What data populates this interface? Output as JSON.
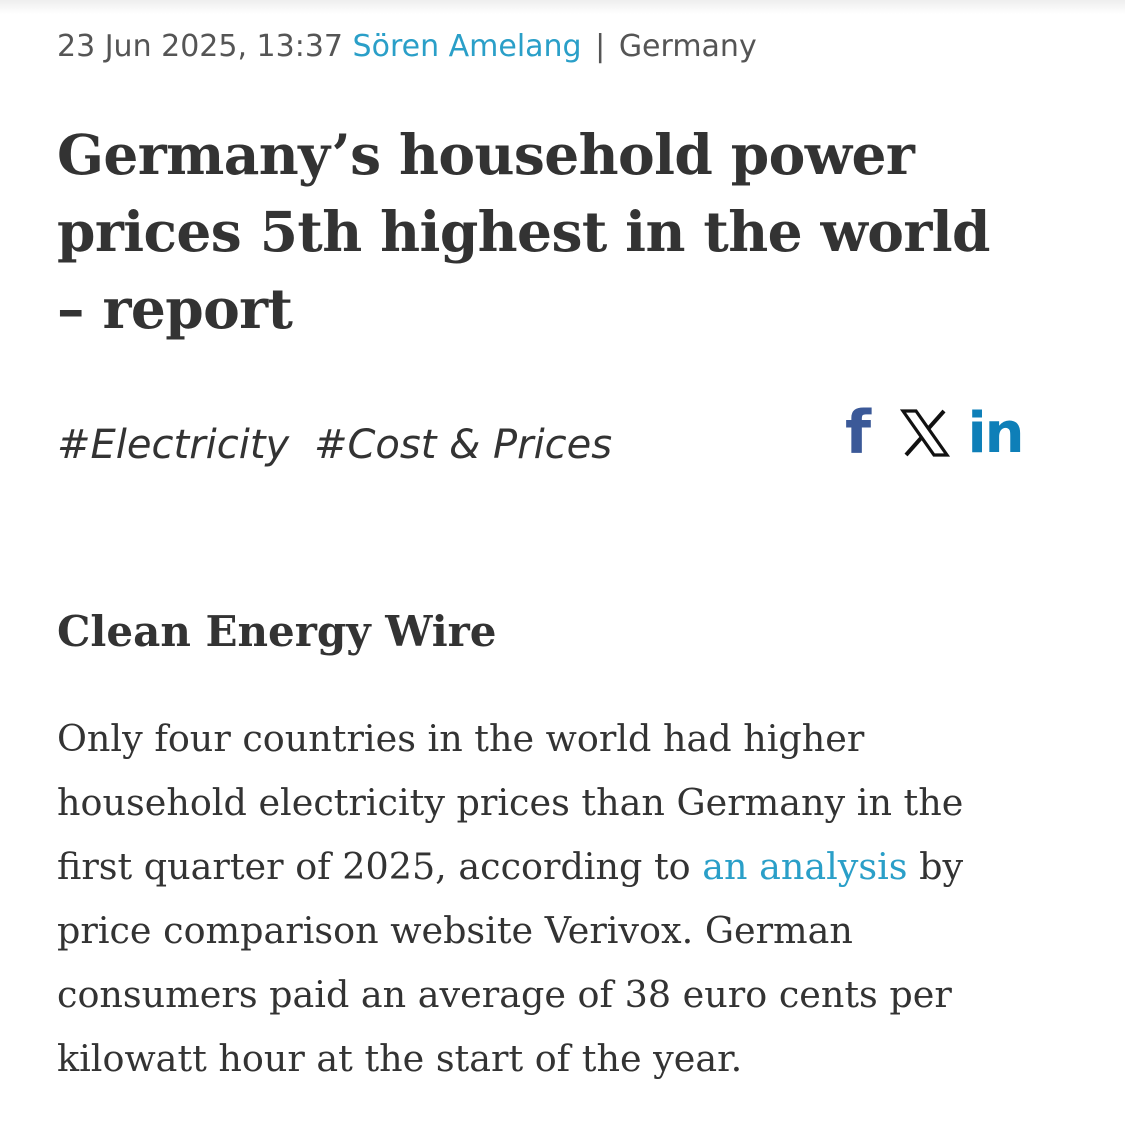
{
  "meta": {
    "date": "23 Jun 2025, 13:37",
    "author": "Sören Amelang",
    "separator": "|",
    "category": "Germany"
  },
  "headline": {
    "lines": [
      "Germany’s household power",
      "prices 5th highest in the world",
      "– report"
    ]
  },
  "tags": [
    "#Electricity",
    "#Cost & Prices"
  ],
  "share": {
    "icons": [
      "facebook-icon",
      "x-icon",
      "linkedin-icon"
    ],
    "facebook_glyph": "f",
    "linkedin_glyph": "in",
    "colors": {
      "facebook": "#3b5998",
      "x": "#111111",
      "linkedin": "#0e7fb8"
    }
  },
  "source": "Clean Energy Wire",
  "body": {
    "line1": "Only four countries in the world had higher",
    "line2": "household electricity prices than Germany in the",
    "line3_pre": "first quarter of 2025, according to ",
    "line3_link": "an analysis",
    "line3_post": " by",
    "line4": "price comparison website Verivox. German",
    "line5": "consumers paid an average of 38 euro cents per",
    "line6": "kilowatt hour at the start of the year."
  },
  "colors": {
    "link": "#2a9fc8",
    "text": "#333333",
    "meta_text": "#555555"
  }
}
